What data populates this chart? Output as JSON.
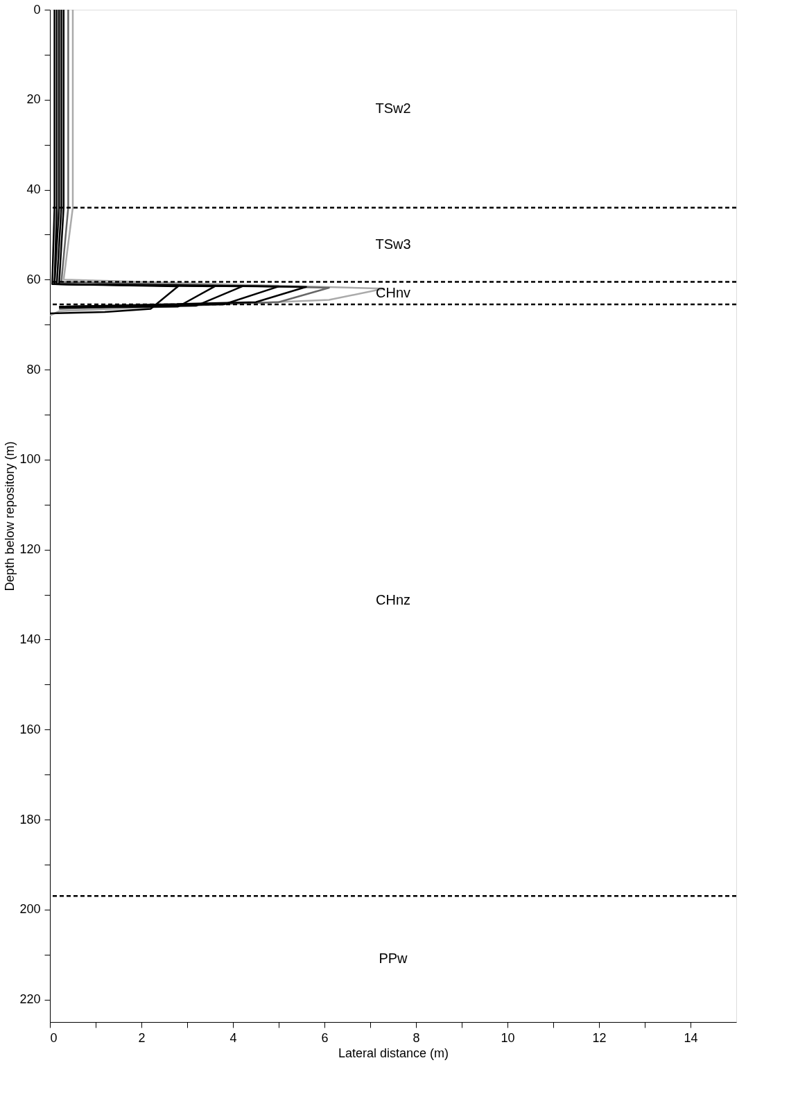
{
  "chart_data": {
    "type": "line",
    "xlabel": "Lateral distance (m)",
    "ylabel": "Depth below repository (m)",
    "xlim": [
      0,
      15
    ],
    "ylim": [
      225,
      0
    ],
    "xticks": [
      0,
      {
        "value": 1,
        "label": null
      },
      2,
      {
        "value": 3,
        "label": null
      },
      4,
      {
        "value": 5,
        "label": null
      },
      6,
      {
        "value": 7,
        "label": null
      },
      8,
      {
        "value": 9,
        "label": null
      },
      10,
      {
        "value": 11,
        "label": null
      },
      12,
      {
        "value": 13,
        "label": null
      },
      14
    ],
    "yticks": [
      0,
      {
        "value": 10,
        "label": null
      },
      20,
      {
        "value": 30,
        "label": null
      },
      40,
      {
        "value": 50,
        "label": null
      },
      60,
      {
        "value": 70,
        "label": null
      },
      80,
      {
        "value": 90,
        "label": null
      },
      100,
      {
        "value": 110,
        "label": null
      },
      120,
      {
        "value": 130,
        "label": null
      },
      140,
      {
        "value": 150,
        "label": null
      },
      160,
      {
        "value": 170,
        "label": null
      },
      180,
      {
        "value": 190,
        "label": null
      },
      200,
      {
        "value": 210,
        "label": null
      },
      220
    ],
    "series": [
      {
        "color": "#aaaaaa",
        "x": [
          0.5,
          0.5,
          0.3,
          7.3,
          6.1,
          0.2,
          0
        ],
        "values": [
          0,
          44,
          60,
          62,
          64.5,
          67,
          68
        ]
      },
      {
        "color": "#666666",
        "x": [
          0.4,
          0.4,
          0.25,
          6.1,
          5.0,
          0.2
        ],
        "values": [
          0,
          44,
          60.5,
          61.8,
          65,
          66.5
        ]
      },
      {
        "color": "#000000",
        "x": [
          0.3,
          0.3,
          0.2,
          5.6,
          4.5,
          0.3
        ],
        "values": [
          0,
          44,
          61,
          61.6,
          65,
          66
        ]
      },
      {
        "color": "#000000",
        "x": [
          0.25,
          0.25,
          0.15,
          5.0,
          3.8,
          0.3
        ],
        "values": [
          0,
          44,
          61,
          61.5,
          65.5,
          66
        ]
      },
      {
        "color": "#000000",
        "x": [
          0.2,
          0.2,
          0.1,
          4.2,
          3.2,
          0.2
        ],
        "values": [
          0,
          44,
          61,
          61.5,
          65.8,
          66
        ]
      },
      {
        "color": "#000000",
        "x": [
          0.15,
          0.15,
          0.1,
          3.6,
          2.8,
          0.2
        ],
        "values": [
          0,
          44,
          61,
          61.5,
          66,
          66.2
        ]
      },
      {
        "color": "#000000",
        "x": [
          0.1,
          0.1,
          0.05,
          2.8,
          2.2,
          1.2,
          0
        ],
        "values": [
          0,
          44,
          61,
          61.5,
          66.5,
          67.2,
          67.5
        ]
      }
    ],
    "ref_lines": [
      {
        "axis": "y",
        "value": 44,
        "line_style": "dashed"
      },
      {
        "axis": "y",
        "value": 60.5,
        "line_style": "dashed"
      },
      {
        "axis": "y",
        "value": 65.5,
        "line_style": "dashed"
      },
      {
        "axis": "y",
        "value": 197,
        "line_style": "dashed"
      }
    ],
    "annotations": [
      "TSw2",
      "TSw3",
      "CHnv",
      "CHnz",
      "PPw"
    ],
    "grid": false,
    "legend": false,
    "marker": "none",
    "line_style": "solid"
  }
}
